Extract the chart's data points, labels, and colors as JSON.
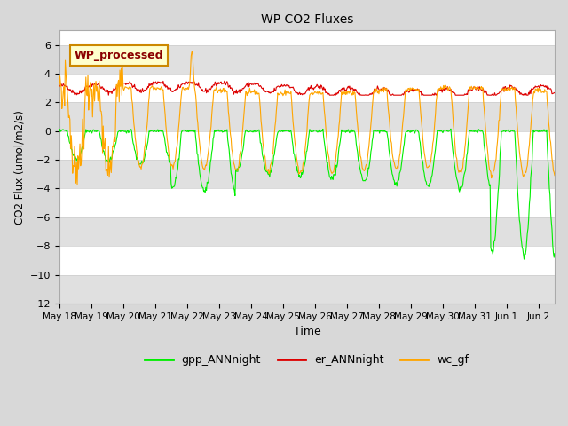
{
  "title": "WP CO2 Fluxes",
  "xlabel": "Time",
  "ylabel": "CO2 Flux (umol/m2/s)",
  "ylim": [
    -12,
    7
  ],
  "yticks": [
    -12,
    -10,
    -8,
    -6,
    -4,
    -2,
    0,
    2,
    4,
    6
  ],
  "annotation": "WP_processed",
  "fig_bg_color": "#d8d8d8",
  "plot_bg_color": "#ffffff",
  "band_color": "#e0e0e0",
  "grid_color": "#cccccc",
  "gpp_color": "#00ee00",
  "er_color": "#dd0000",
  "wc_color": "#ffa500",
  "legend_labels": [
    "gpp_ANNnight",
    "er_ANNnight",
    "wc_gf"
  ]
}
